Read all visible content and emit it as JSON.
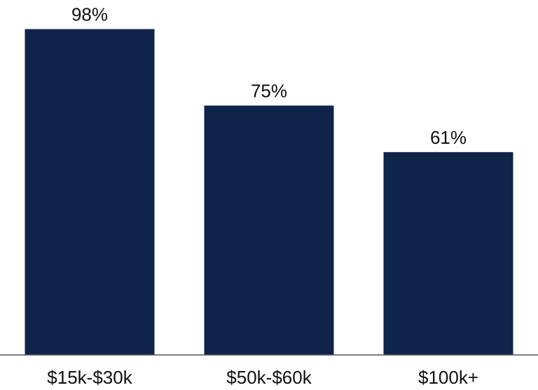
{
  "chart_data": {
    "type": "bar",
    "title": "",
    "xlabel": "",
    "ylabel": "",
    "categories": [
      "$15k-$30k",
      "$50k-$60k",
      "$100k+"
    ],
    "values": [
      98,
      75,
      61
    ],
    "data_labels": [
      "98%",
      "75%",
      "61%"
    ],
    "ylim": [
      0,
      100
    ],
    "grid": false,
    "legend": "none",
    "bar_color": "#10244A"
  }
}
